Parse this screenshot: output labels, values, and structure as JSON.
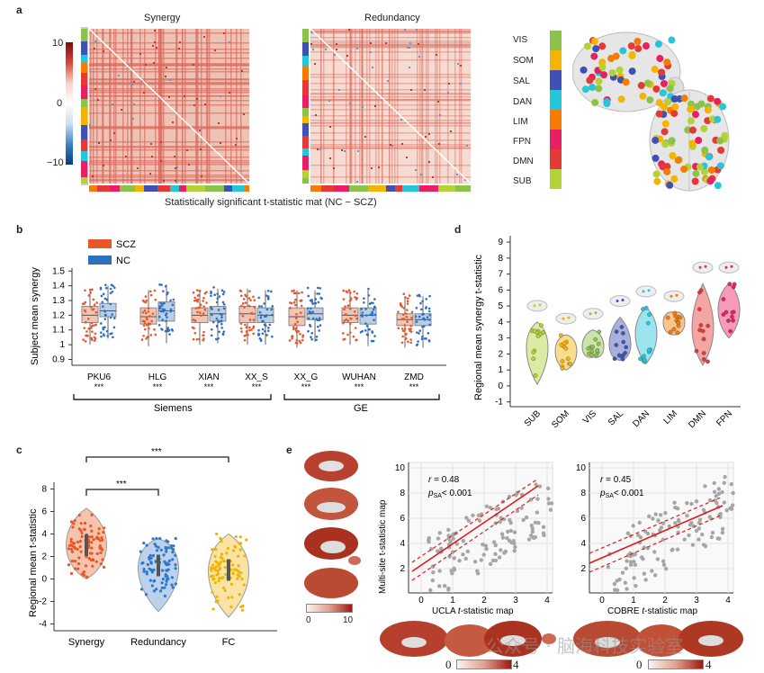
{
  "panel_a": {
    "label": "a",
    "title_left": "Synergy",
    "title_right": "Redundancy",
    "colorbar_ticks": [
      "10",
      "0",
      "−10"
    ],
    "caption": "Statistically significant t-statistic mat (NC − SCZ)",
    "networks": [
      {
        "name": "VIS",
        "color": "#8bc34a"
      },
      {
        "name": "SOM",
        "color": "#f5b400"
      },
      {
        "name": "SAL",
        "color": "#3f51b5"
      },
      {
        "name": "DAN",
        "color": "#26c6da"
      },
      {
        "name": "LIM",
        "color": "#f57c00"
      },
      {
        "name": "FPN",
        "color": "#e91e63"
      },
      {
        "name": "DMN",
        "color": "#e53935"
      },
      {
        "name": "SUB",
        "color": "#b2d235"
      }
    ]
  },
  "panel_b": {
    "label": "b",
    "legend": [
      {
        "name": "SCZ",
        "color": "#e8572a"
      },
      {
        "name": "NC",
        "color": "#2f6fbf"
      }
    ],
    "ylabel": "Subject mean synergy",
    "yticks": [
      "1.5",
      "1.4",
      "1.3",
      "1.2",
      "1.1",
      "1",
      "0.9"
    ],
    "sites": [
      "PKU6",
      "HLG",
      "XIAN",
      "XX_S",
      "XX_G",
      "WUHAN",
      "ZMD"
    ],
    "stars": [
      "***",
      "***",
      "***",
      "***",
      "***",
      "***",
      "***"
    ],
    "group_left": "Siemens",
    "group_right": "GE"
  },
  "panel_c": {
    "label": "c",
    "ylabel": "Regional mean t-statistic",
    "yticks": [
      "8",
      "6",
      "4",
      "2",
      "0",
      "-2",
      "-4"
    ],
    "categories": [
      "Synergy",
      "Redundancy",
      "FC"
    ],
    "sig_top": "***",
    "sig_mid": "***"
  },
  "panel_d": {
    "label": "d",
    "ylabel": "Regional mean synergy t-statistic",
    "yticks": [
      "9",
      "8",
      "7",
      "6",
      "5",
      "4",
      "3",
      "2",
      "1",
      "0",
      "-1"
    ],
    "categories": [
      "SUB",
      "SOM",
      "VIS",
      "SAL",
      "DAN",
      "LIM",
      "DMN",
      "FPN"
    ]
  },
  "panel_e": {
    "label": "e",
    "ylabel": "Multi-site t-statistic map",
    "left": {
      "xlabel_pre": "UCLA ",
      "xlabel_it": "t",
      "xlabel_post": "-statistic map",
      "r_text": "= 0.48",
      "p_text": "< 0.001",
      "xticks": [
        "0",
        "1",
        "2",
        "3",
        "4"
      ],
      "yticks": [
        "10",
        "8",
        "6",
        "4",
        "2"
      ]
    },
    "right": {
      "xlabel_pre": "COBRE ",
      "xlabel_it": "t",
      "xlabel_post": "-statistic map",
      "r_text": "= 0.45",
      "p_text": "< 0.001",
      "xticks": [
        "0",
        "1",
        "2",
        "3",
        "4"
      ],
      "yticks": [
        "10",
        "8",
        "6",
        "4",
        "2"
      ]
    },
    "brain_scale_left": [
      "0",
      "10"
    ],
    "bottom_scale_left": [
      "0",
      "4"
    ],
    "bottom_scale_right": [
      "0",
      "4"
    ]
  },
  "watermark": "公众号 · 脑海科技实验室"
}
